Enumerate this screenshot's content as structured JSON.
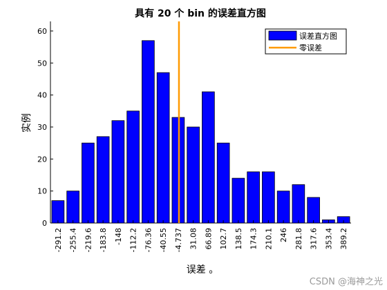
{
  "chart_data": {
    "type": "bar",
    "title": "具有 20 个 bin 的误差直方图",
    "xlabel": "误差 。",
    "ylabel": "实例",
    "categories": [
      "-291.2",
      "-255.4",
      "-219.6",
      "-183.8",
      "-148",
      "-112.2",
      "-76.36",
      "-40.55",
      "-4.737",
      "31.08",
      "66.89",
      "102.7",
      "138.5",
      "174.3",
      "210.1",
      "246",
      "281.8",
      "317.6",
      "353.4",
      "389.2"
    ],
    "series": [
      {
        "name": "误差直方图",
        "values": [
          7,
          10,
          25,
          27,
          32,
          35,
          57,
          47,
          33,
          30,
          41,
          25,
          14,
          16,
          16,
          10,
          12,
          8,
          1,
          2
        ],
        "color": "#0000ff"
      }
    ],
    "reference_line": {
      "name": "零误差",
      "category_index": 8.05,
      "color": "#ff9900"
    },
    "ylim": [
      0,
      63
    ],
    "yticks": [
      0,
      10,
      20,
      30,
      40,
      50,
      60
    ],
    "legend_placement": "top-right",
    "grid": false
  },
  "watermark": "CSDN @海神之光"
}
